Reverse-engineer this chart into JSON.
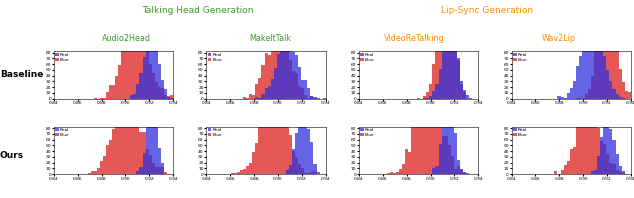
{
  "title_left": "Talking Head Generation",
  "title_right": "Lip-Sync Generation",
  "title_left_color": "#3a9c28",
  "title_right_color": "#ff8c00",
  "col_labels": [
    "Audio2Head",
    "MakeItTalk",
    "VideoReTalking",
    "Wav2Lip"
  ],
  "col_label_colors_left": "#3a9c28",
  "col_label_colors_right": "#ff8c00",
  "row_labels": [
    "Baseline",
    "Ours"
  ],
  "xlim": [
    0.84,
    0.94
  ],
  "xticks": [
    0.84,
    0.86,
    0.88,
    0.9,
    0.92,
    0.94
  ],
  "xtick_labels": [
    "0.84",
    "0.86",
    "0.88",
    "0.90",
    "0.92",
    "0.94"
  ],
  "yticks": [
    0,
    10,
    20,
    30,
    40,
    50,
    60,
    70,
    80
  ],
  "ytick_labels": [
    "0",
    "10",
    "20",
    "30",
    "40",
    "50",
    "60",
    "70",
    "80"
  ],
  "bins": 40,
  "real_color": "#3030dd",
  "fake_color": "#dd2020",
  "real_alpha": 0.75,
  "fake_alpha": 0.75,
  "figsize": [
    6.34,
    1.98
  ],
  "dpi": 100,
  "panels": {
    "b0": {
      "real_mu": 0.921,
      "real_sig": 0.006,
      "fake_mu": 0.909,
      "fake_sig": 0.01,
      "real_n": 700,
      "fake_n": 1500,
      "real_seed": 1,
      "fake_seed": 2
    },
    "b1": {
      "real_mu": 0.908,
      "real_sig": 0.009,
      "fake_mu": 0.9,
      "fake_sig": 0.01,
      "real_n": 900,
      "fake_n": 1200,
      "real_seed": 3,
      "fake_seed": 4
    },
    "b2": {
      "real_mu": 0.916,
      "real_sig": 0.006,
      "fake_mu": 0.913,
      "fake_sig": 0.006,
      "real_n": 800,
      "fake_n": 1800,
      "real_seed": 5,
      "fake_seed": 6
    },
    "b3": {
      "real_mu": 0.908,
      "real_sig": 0.009,
      "fake_mu": 0.92,
      "fake_sig": 0.007,
      "real_n": 1200,
      "fake_n": 1200,
      "real_seed": 7,
      "fake_seed": 8
    },
    "o0": {
      "real_mu": 0.922,
      "real_sig": 0.004,
      "fake_mu": 0.902,
      "fake_sig": 0.012,
      "real_n": 600,
      "fake_n": 1500,
      "real_seed": 9,
      "fake_seed": 10
    },
    "o1": {
      "real_mu": 0.921,
      "real_sig": 0.005,
      "fake_mu": 0.897,
      "fake_sig": 0.011,
      "real_n": 700,
      "fake_n": 1400,
      "real_seed": 11,
      "fake_seed": 12
    },
    "o2": {
      "real_mu": 0.915,
      "real_sig": 0.005,
      "fake_mu": 0.899,
      "fake_sig": 0.01,
      "real_n": 700,
      "fake_n": 1800,
      "real_seed": 13,
      "fake_seed": 14
    },
    "o3": {
      "real_mu": 0.921,
      "real_sig": 0.005,
      "fake_mu": 0.905,
      "fake_sig": 0.01,
      "real_n": 500,
      "fake_n": 1200,
      "real_seed": 15,
      "fake_seed": 16
    }
  }
}
